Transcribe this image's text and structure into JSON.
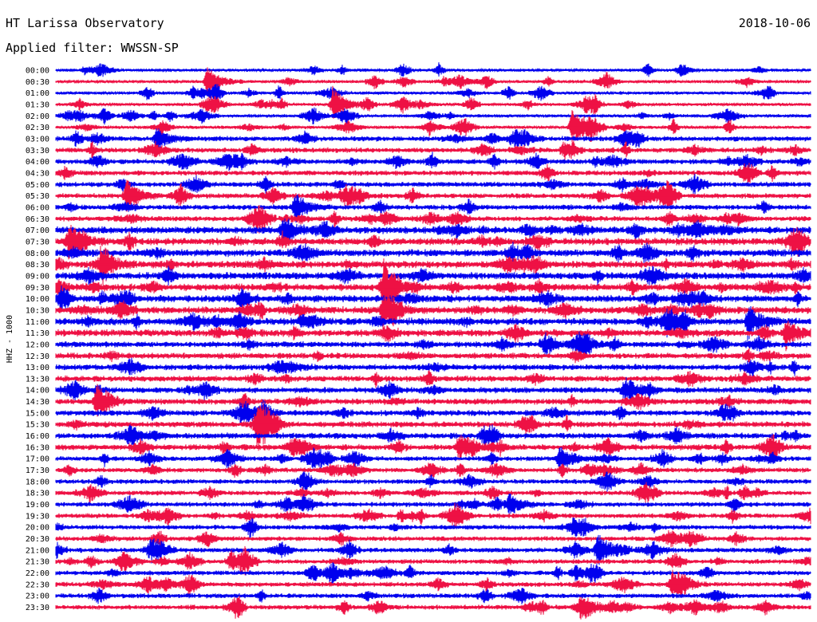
{
  "header": {
    "station": "HT Larissa Observatory",
    "date": "2018-10-06",
    "filter": "Applied filter: WWSSN-SP"
  },
  "colors": {
    "even_row": "#0000ee",
    "odd_row": "#ee1144",
    "background": "#ffffff",
    "text": "#000000"
  },
  "chart_data": {
    "type": "line",
    "ylabel": "HHZ - 1000",
    "trace_colors": [
      "blue",
      "red"
    ],
    "rows": [
      "00:00",
      "00:30",
      "01:00",
      "01:30",
      "02:00",
      "02:30",
      "03:00",
      "03:30",
      "04:00",
      "04:30",
      "05:00",
      "05:30",
      "06:00",
      "06:30",
      "07:00",
      "07:30",
      "08:00",
      "08:30",
      "09:00",
      "09:30",
      "10:00",
      "10:30",
      "11:00",
      "11:30",
      "12:00",
      "12:30",
      "13:00",
      "13:30",
      "14:00",
      "14:30",
      "15:00",
      "15:30",
      "16:00",
      "16:30",
      "17:00",
      "17:30",
      "18:00",
      "18:30",
      "19:00",
      "19:30",
      "20:00",
      "20:30",
      "21:00",
      "21:30",
      "22:00",
      "22:30",
      "23:00",
      "23:30"
    ],
    "events": [
      {
        "row": "00:30",
        "minute": 6.0,
        "amplitude": 1.4
      },
      {
        "row": "01:30",
        "minute": 11.0,
        "amplitude": 1.6
      },
      {
        "row": "02:30",
        "minute": 20.5,
        "amplitude": 1.6
      },
      {
        "row": "03:00",
        "minute": 4.0,
        "amplitude": 1.1
      },
      {
        "row": "05:30",
        "minute": 2.8,
        "amplitude": 1.5
      },
      {
        "row": "06:00",
        "minute": 9.5,
        "amplitude": 1.3
      },
      {
        "row": "07:00",
        "minute": 9.0,
        "amplitude": 1.3
      },
      {
        "row": "07:30",
        "minute": 0.5,
        "amplitude": 1.5
      },
      {
        "row": "08:30",
        "minute": 1.8,
        "amplitude": 1.6
      },
      {
        "row": "09:30",
        "minute": 13.0,
        "amplitude": 2.5
      },
      {
        "row": "10:30",
        "minute": 13.0,
        "amplitude": 1.8
      },
      {
        "row": "11:00",
        "minute": 27.5,
        "amplitude": 1.5
      },
      {
        "row": "11:30",
        "minute": 29.0,
        "amplitude": 1.3
      },
      {
        "row": "14:30",
        "minute": 1.6,
        "amplitude": 1.5
      },
      {
        "row": "15:30",
        "minute": 8.0,
        "amplitude": 1.6
      },
      {
        "row": "16:30",
        "minute": 16.0,
        "amplitude": 1.2
      },
      {
        "row": "17:00",
        "minute": 20.0,
        "amplitude": 1.2
      },
      {
        "row": "19:00",
        "minute": 18.0,
        "amplitude": 1.1
      },
      {
        "row": "21:00",
        "minute": 21.5,
        "amplitude": 1.5
      },
      {
        "row": "22:30",
        "minute": 24.5,
        "amplitude": 0.9
      }
    ]
  }
}
